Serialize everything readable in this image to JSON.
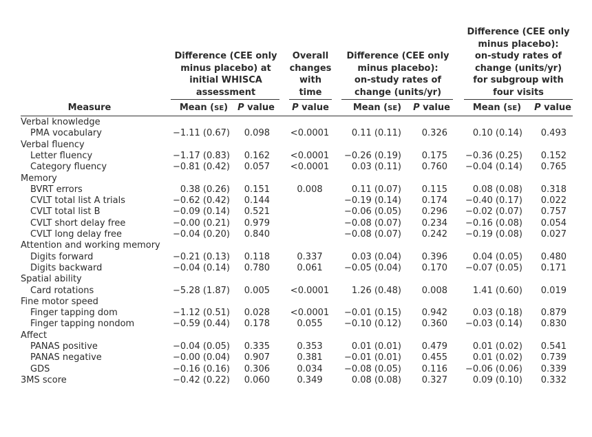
{
  "headers": {
    "group1": "Difference (CEE only minus placebo) at initial WHISCA assessment",
    "group2": "Overall changes with time",
    "group3": "Difference (CEE only minus placebo): on-study rates of change (units/yr)",
    "group4": "Difference (CEE only minus placebo): on-study rates of change (units/yr) for subgroup with four visits",
    "group1_lines": [
      "Difference (CEE only",
      "minus placebo) at",
      "initial WHISCA",
      "assessment"
    ],
    "group2_lines": [
      "Overall",
      "changes",
      "with",
      "time"
    ],
    "group3_lines": [
      "Difference (CEE only",
      "minus placebo):",
      "on-study rates of",
      "change (units/yr)"
    ],
    "group4_lines": [
      "Difference (CEE only",
      "minus placebo):",
      "on-study rates of",
      "change (units/yr)",
      "for subgroup with",
      "four visits"
    ]
  },
  "subheaders": {
    "measure": "Measure",
    "mean_se": "Mean (SE)",
    "p_value": "P value"
  },
  "rows": [
    {
      "label": "Verbal knowledge",
      "indent": false,
      "v": [
        "",
        "",
        "",
        "",
        "",
        "",
        ""
      ]
    },
    {
      "label": "PMA vocabulary",
      "indent": true,
      "v": [
        "−1.11 (0.67)",
        "0.098",
        "<0.0001",
        "0.11 (0.11)",
        "0.326",
        "0.10 (0.14)",
        "0.493"
      ]
    },
    {
      "label": "Verbal fluency",
      "indent": false,
      "v": [
        "",
        "",
        "",
        "",
        "",
        "",
        ""
      ]
    },
    {
      "label": "Letter fluency",
      "indent": true,
      "v": [
        "−1.17 (0.83)",
        "0.162",
        "<0.0001",
        "−0.26 (0.19)",
        "0.175",
        "−0.36 (0.25)",
        "0.152"
      ]
    },
    {
      "label": "Category fluency",
      "indent": true,
      "v": [
        "−0.81 (0.42)",
        "0.057",
        "<0.0001",
        "0.03 (0.11)",
        "0.760",
        "−0.04 (0.14)",
        "0.765"
      ]
    },
    {
      "label": "Memory",
      "indent": false,
      "v": [
        "",
        "",
        "",
        "",
        "",
        "",
        ""
      ]
    },
    {
      "label": "BVRT errors",
      "indent": true,
      "v": [
        "0.38 (0.26)",
        "0.151",
        "0.008",
        "0.11 (0.07)",
        "0.115",
        "0.08 (0.08)",
        "0.318"
      ]
    },
    {
      "label": "CVLT total list A trials",
      "indent": true,
      "v": [
        "−0.62 (0.42)",
        "0.144",
        "",
        "−0.19 (0.14)",
        "0.174",
        "−0.40 (0.17)",
        "0.022"
      ]
    },
    {
      "label": "CVLT total list B",
      "indent": true,
      "v": [
        "−0.09 (0.14)",
        "0.521",
        "",
        "−0.06 (0.05)",
        "0.296",
        "−0.02 (0.07)",
        "0.757"
      ]
    },
    {
      "label": "CVLT short delay free",
      "indent": true,
      "v": [
        "−0.00 (0.21)",
        "0.979",
        "",
        "−0.08 (0.07)",
        "0.234",
        "−0.16 (0.08)",
        "0.054"
      ]
    },
    {
      "label": "CVLT long delay free",
      "indent": true,
      "v": [
        "−0.04 (0.20)",
        "0.840",
        "",
        "−0.08 (0.07)",
        "0.242",
        "−0.19 (0.08)",
        "0.027"
      ]
    },
    {
      "label": "Attention and working memory",
      "indent": false,
      "v": [
        "",
        "",
        "",
        "",
        "",
        "",
        ""
      ]
    },
    {
      "label": "Digits forward",
      "indent": true,
      "v": [
        "−0.21 (0.13)",
        "0.118",
        "0.337",
        "0.03 (0.04)",
        "0.396",
        "0.04 (0.05)",
        "0.480"
      ]
    },
    {
      "label": "Digits backward",
      "indent": true,
      "v": [
        "−0.04 (0.14)",
        "0.780",
        "0.061",
        "−0.05 (0.04)",
        "0.170",
        "−0.07 (0.05)",
        "0.171"
      ]
    },
    {
      "label": "Spatial ability",
      "indent": false,
      "v": [
        "",
        "",
        "",
        "",
        "",
        "",
        ""
      ]
    },
    {
      "label": "Card rotations",
      "indent": true,
      "v": [
        "−5.28 (1.87)",
        "0.005",
        "<0.0001",
        "1.26 (0.48)",
        "0.008",
        "1.41 (0.60)",
        "0.019"
      ]
    },
    {
      "label": "Fine motor speed",
      "indent": false,
      "v": [
        "",
        "",
        "",
        "",
        "",
        "",
        ""
      ]
    },
    {
      "label": "Finger tapping dom",
      "indent": true,
      "v": [
        "−1.12 (0.51)",
        "0.028",
        "<0.0001",
        "−0.01 (0.15)",
        "0.942",
        "0.03 (0.18)",
        "0.879"
      ]
    },
    {
      "label": "Finger tapping nondom",
      "indent": true,
      "v": [
        "−0.59 (0.44)",
        "0.178",
        "0.055",
        "−0.10 (0.12)",
        "0.360",
        "−0.03 (0.14)",
        "0.830"
      ]
    },
    {
      "label": "Affect",
      "indent": false,
      "v": [
        "",
        "",
        "",
        "",
        "",
        "",
        ""
      ]
    },
    {
      "label": "PANAS positive",
      "indent": true,
      "v": [
        "−0.04 (0.05)",
        "0.335",
        "0.353",
        "0.01 (0.01)",
        "0.479",
        "0.01 (0.02)",
        "0.541"
      ]
    },
    {
      "label": "PANAS negative",
      "indent": true,
      "v": [
        "−0.00 (0.04)",
        "0.907",
        "0.381",
        "−0.01 (0.01)",
        "0.455",
        "0.01 (0.02)",
        "0.739"
      ]
    },
    {
      "label": "GDS",
      "indent": true,
      "v": [
        "−0.16 (0.16)",
        "0.306",
        "0.034",
        "−0.08 (0.05)",
        "0.116",
        "−0.06 (0.06)",
        "0.339"
      ]
    },
    {
      "label": "3MS score",
      "indent": false,
      "v": [
        "−0.42 (0.22)",
        "0.060",
        "0.349",
        "0.08 (0.08)",
        "0.327",
        "0.09 (0.10)",
        "0.332"
      ]
    }
  ]
}
